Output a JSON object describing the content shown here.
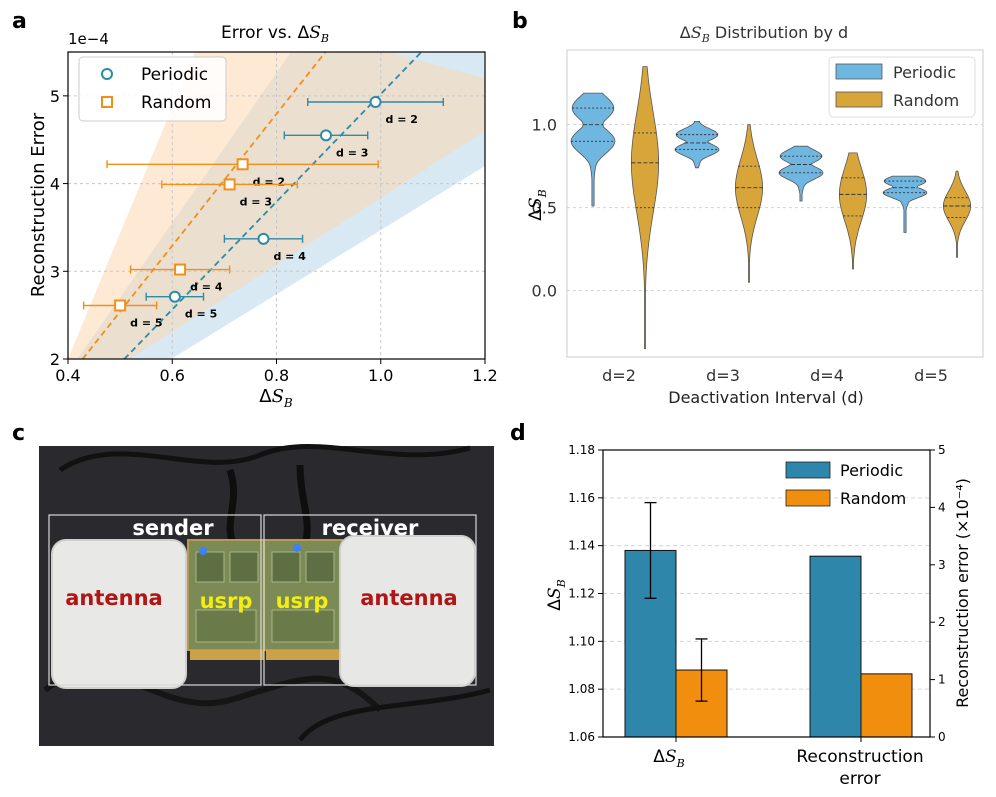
{
  "panel_letters": [
    "a",
    "b",
    "c",
    "d"
  ],
  "colors": {
    "periodic": "#2e8aa6",
    "random": "#f0901a",
    "violin_periodic": "#6fb6e0",
    "violin_random": "#d8a53a",
    "bar_periodic": "#2e86ab",
    "bar_random": "#f28e0d"
  },
  "chart_data": [
    {
      "id": "a",
      "type": "scatter",
      "title": "Error vs. ΔS_B",
      "title_parts": {
        "main": "Error vs. Δ",
        "sym": "S",
        "sub": "B"
      },
      "xlabel": "ΔS_B",
      "ylabel": "Reconstruction Error",
      "xlim": [
        0.4,
        1.2
      ],
      "ylim": [
        2,
        5.5
      ],
      "xticks": [
        0.4,
        0.6,
        0.8,
        1.0,
        1.2
      ],
      "yticks": [
        2,
        3,
        4,
        5
      ],
      "exponent_label": "1e−4",
      "legend": [
        "Periodic",
        "Random"
      ],
      "grid": true,
      "series": [
        {
          "name": "Periodic",
          "x": [
            0.99,
            0.895,
            0.775,
            0.605
          ],
          "y": [
            4.93,
            4.55,
            3.37,
            2.71
          ],
          "xerr": [
            0.13,
            0.08,
            0.075,
            0.055
          ],
          "labels": [
            "d = 2",
            "d = 3",
            "d = 4",
            "d = 5"
          ],
          "fit": {
            "x1": 0.508,
            "y1": 2.0,
            "x2": 1.078,
            "y2": 5.5
          }
        },
        {
          "name": "Random",
          "x": [
            0.735,
            0.71,
            0.615,
            0.5
          ],
          "y": [
            4.22,
            3.99,
            3.02,
            2.61
          ],
          "xerr": [
            0.26,
            0.13,
            0.095,
            0.07
          ],
          "labels": [
            "d = 2",
            "d = 3",
            "d = 4",
            "d = 5"
          ],
          "fit": {
            "x1": 0.428,
            "y1": 2.0,
            "x2": 0.894,
            "y2": 5.5
          }
        }
      ]
    },
    {
      "id": "b",
      "type": "violin",
      "title": "ΔS_B Distribution by d",
      "title_parts": {
        "main": "Δ",
        "sym": "S",
        "sub": "B",
        "rest": " Distribution by d"
      },
      "xlabel": "Deactivation Interval (d)",
      "ylabel": "ΔS_B",
      "categories": [
        "d=2",
        "d=3",
        "d=4",
        "d=5"
      ],
      "ylim": [
        -0.4,
        1.45
      ],
      "yticks": [
        0.0,
        0.5,
        1.0
      ],
      "ytick_labels": [
        "0.0",
        "0.5",
        "1.0"
      ],
      "legend": [
        "Periodic",
        "Random"
      ],
      "series": [
        {
          "name": "Periodic",
          "min": [
            0.51,
            0.74,
            0.54,
            0.35
          ],
          "max": [
            1.19,
            1.02,
            0.87,
            0.69
          ],
          "q1": [
            0.9,
            0.85,
            0.71,
            0.59
          ],
          "median": [
            1.0,
            0.89,
            0.76,
            0.62
          ],
          "q3": [
            1.1,
            0.94,
            0.81,
            0.66
          ]
        },
        {
          "name": "Random",
          "min": [
            -0.35,
            0.05,
            0.13,
            0.2
          ],
          "max": [
            1.35,
            1.0,
            0.83,
            0.72
          ],
          "q1": [
            0.5,
            0.5,
            0.45,
            0.44
          ],
          "median": [
            0.77,
            0.62,
            0.58,
            0.51
          ],
          "q3": [
            0.95,
            0.75,
            0.68,
            0.56
          ]
        }
      ]
    },
    {
      "id": "d",
      "type": "bar",
      "categories": [
        "ΔS_B",
        "Reconstruction error"
      ],
      "category_parts": [
        {
          "main": "Δ",
          "sym": "S",
          "sub": "B"
        },
        {
          "line1": "Reconstruction",
          "line2": "error"
        }
      ],
      "ylabel_left": "ΔS_B",
      "ylabel_right": "Reconstruction error (×10⁻⁴)",
      "ylim_left": [
        1.06,
        1.18
      ],
      "yticks_left": [
        "1.06",
        "1.08",
        "1.10",
        "1.12",
        "1.14",
        "1.16",
        "1.18"
      ],
      "ylim_right": [
        0,
        5
      ],
      "yticks_right": [
        "0",
        "1",
        "2",
        "3",
        "4",
        "5"
      ],
      "legend": [
        "Periodic",
        "Random"
      ],
      "series": [
        {
          "name": "Periodic",
          "dsb": 1.138,
          "dsb_err": 0.02,
          "recon": 3.15
        },
        {
          "name": "Random",
          "dsb": 1.088,
          "dsb_err": 0.013,
          "recon": 1.1
        }
      ]
    }
  ],
  "photo": {
    "sender_label": "sender",
    "receiver_label": "receiver",
    "antenna_left": "antenna",
    "antenna_right": "antenna",
    "usrp_left": "usrp",
    "usrp_right": "usrp"
  }
}
